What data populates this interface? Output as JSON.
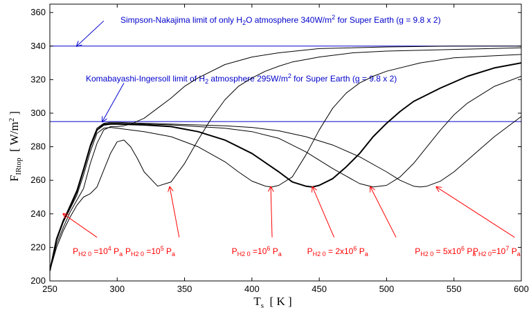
{
  "chart_data": {
    "type": "line",
    "xlim": [
      250,
      600
    ],
    "ylim": [
      200,
      365
    ],
    "xticks": [
      250,
      300,
      350,
      400,
      450,
      500,
      550,
      600
    ],
    "yticks": [
      200,
      220,
      240,
      260,
      280,
      300,
      320,
      340,
      360
    ],
    "xlabel": {
      "main": "T",
      "sub": "s",
      "rest": "  [ K ]"
    },
    "ylabel": {
      "main": "F",
      "sub": "IRtop",
      "rest": "  [ W/m",
      "sup": "2",
      "rest2": " ]"
    },
    "colors": {
      "axis": "#000000",
      "curve": "#000000",
      "limit": "#0000cc",
      "limit_text": "#0000cc",
      "annotation": "#ff0000"
    },
    "limits": [
      {
        "value": 340,
        "text": {
          "a": "Simpson-Nakajima limit of only H",
          "sub": "2",
          "b": "O atmosphere 340W/m",
          "sup": "2",
          "c": " for Super Earth (g = 9.8 x 2)"
        },
        "arrow_from": [
          290,
          355
        ],
        "arrow_to": [
          270,
          340
        ]
      },
      {
        "value": 295,
        "text": {
          "a": "Komabayashi-Ingersoll limit of H",
          "sub": "2",
          "b": " atmosphere 295W/m",
          "sup": "2",
          "c": " for Super Earth (g = 9.8 x 2)"
        },
        "arrow_from": [
          305,
          318
        ],
        "arrow_to": [
          289,
          295
        ]
      }
    ],
    "series": [
      {
        "x": [
          250,
          255,
          260,
          265,
          270,
          275,
          280,
          285,
          290,
          295,
          300,
          305,
          310,
          320,
          330,
          340,
          350,
          360,
          380,
          400,
          420,
          450,
          500,
          550,
          600
        ],
        "y": [
          206,
          222,
          232,
          241,
          248,
          255,
          270,
          282,
          290,
          292,
          292,
          292.5,
          293.5,
          297,
          303,
          309,
          316,
          321,
          329,
          333.5,
          336,
          338.5,
          339.5,
          340,
          340
        ]
      },
      {
        "x": [
          250,
          255,
          260,
          265,
          270,
          275,
          280,
          285,
          290,
          295,
          300,
          305,
          310,
          315,
          320,
          330,
          340,
          350,
          360,
          370,
          380,
          390,
          400,
          410,
          420,
          430,
          440,
          450,
          475,
          500,
          550,
          600
        ],
        "y": [
          206,
          220,
          230,
          238,
          245,
          250,
          252,
          256,
          266,
          276,
          283,
          284,
          280,
          273,
          265,
          256.5,
          259,
          270,
          284,
          297,
          308,
          316,
          321,
          325,
          328,
          330.5,
          332,
          333.5,
          336,
          337,
          338,
          339
        ]
      },
      {
        "x": [
          250,
          255,
          260,
          265,
          270,
          275,
          280,
          285,
          290,
          295,
          300,
          310,
          320,
          340,
          360,
          380,
          390,
          400,
          410,
          415,
          420,
          430,
          440,
          450,
          460,
          470,
          480,
          490,
          500,
          525,
          550,
          575,
          600
        ],
        "y": [
          206,
          224,
          235,
          243,
          251,
          263,
          277,
          288,
          291,
          291.5,
          291,
          290,
          289,
          286,
          280,
          271,
          265,
          259.5,
          256.5,
          256,
          257,
          262,
          275,
          290,
          303,
          312,
          318,
          322,
          325,
          330,
          333,
          334,
          335
        ]
      },
      {
        "x": [
          250,
          255,
          260,
          265,
          270,
          275,
          280,
          285,
          290,
          295,
          300,
          320,
          340,
          360,
          380,
          400,
          420,
          430,
          440,
          445,
          450,
          460,
          470,
          480,
          490,
          500,
          510,
          520,
          540,
          560,
          580,
          600
        ],
        "y": [
          206,
          225,
          236,
          244,
          253,
          266,
          280,
          290,
          293,
          293.5,
          293.5,
          293,
          292,
          289,
          284,
          276,
          265,
          259,
          256.5,
          256,
          257,
          261,
          268,
          276,
          286,
          294,
          301,
          307,
          315,
          322,
          327,
          330
        ]
      },
      {
        "x": [
          250,
          255,
          260,
          265,
          270,
          275,
          280,
          285,
          290,
          295,
          300,
          320,
          340,
          360,
          380,
          400,
          420,
          440,
          460,
          480,
          490,
          500,
          510,
          520,
          530,
          540,
          550,
          560,
          580,
          600
        ],
        "y": [
          206,
          225,
          236,
          245,
          254,
          267,
          281,
          291,
          293.5,
          294,
          294,
          293.5,
          293,
          292,
          291,
          289,
          285,
          277,
          267,
          258,
          256,
          257,
          262,
          270,
          280,
          290,
          299,
          306,
          316,
          322
        ]
      },
      {
        "x": [
          250,
          255,
          260,
          265,
          270,
          275,
          280,
          285,
          290,
          295,
          300,
          320,
          340,
          360,
          380,
          400,
          420,
          440,
          460,
          480,
          500,
          510,
          520,
          525,
          530,
          540,
          550,
          560,
          570,
          580,
          590,
          600
        ],
        "y": [
          206,
          225,
          236,
          245,
          254,
          267,
          281,
          291,
          294,
          294.5,
          294.5,
          294,
          293.5,
          293,
          292.5,
          291.5,
          289.5,
          286,
          281,
          274,
          265,
          260,
          256.5,
          256,
          256.5,
          259.5,
          265,
          272,
          279,
          286,
          292,
          298
        ]
      }
    ],
    "annotations": [
      {
        "text": {
          "p": "P",
          "sub": "H2 0",
          "mid": " =10",
          "sup": "4",
          "end": " P",
          "sub2": "a"
        },
        "label_at": [
          267,
          216
        ],
        "arrow_from": [
          285,
          226
        ],
        "arrow_to": [
          260,
          240
        ]
      },
      {
        "text": {
          "p": "P",
          "sub": "H2 0",
          "mid": " =10",
          "sup": "5",
          "end": " P",
          "sub2": "a"
        },
        "label_at": [
          306,
          216
        ],
        "arrow_from": [
          346,
          226
        ],
        "arrow_to": [
          339,
          256
        ]
      },
      {
        "text": {
          "p": "P",
          "sub": "H2 0",
          "mid": " =10",
          "sup": "6",
          "end": " P",
          "sub2": "a"
        },
        "label_at": [
          385,
          216
        ],
        "arrow_from": [
          415,
          226
        ],
        "arrow_to": [
          414,
          256
        ]
      },
      {
        "text": {
          "p": "P",
          "sub": "H2 0",
          "mid": " = 2x10",
          "sup": "6",
          "end": " P",
          "sub2": "a"
        },
        "label_at": [
          441,
          216
        ],
        "arrow_from": [
          461,
          226
        ],
        "arrow_to": [
          445,
          256
        ]
      },
      {
        "text": {
          "p": "P",
          "sub": "H2 0",
          "mid": " = 5x10",
          "sup": "6",
          "end": " P",
          "sub2": "a"
        },
        "label_at": [
          521,
          216
        ],
        "arrow_from": [
          507,
          226
        ],
        "arrow_to": [
          488,
          256
        ]
      },
      {
        "text": {
          "p": "P",
          "sub": "H2 0",
          "mid": "=10",
          "sup": "7",
          "end": " P",
          "sub2": "a"
        },
        "label_at": [
          564,
          216
        ],
        "arrow_from": [
          595,
          226
        ],
        "arrow_to": [
          537,
          256
        ]
      }
    ]
  }
}
